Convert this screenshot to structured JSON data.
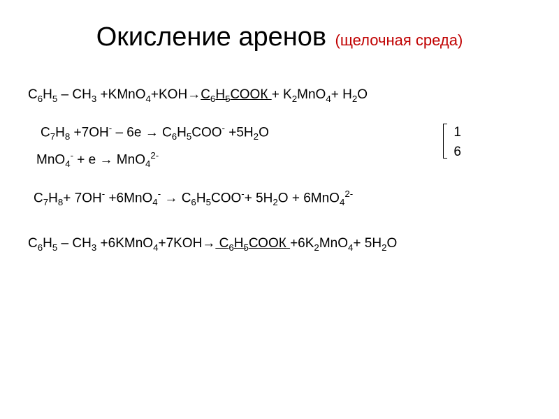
{
  "title": {
    "main": "Окисление аренов",
    "subtitle": "(щелочная среда)",
    "main_fontsize": 38,
    "subtitle_fontsize": 22,
    "subtitle_color": "#c00000"
  },
  "equations": {
    "eq1_parts": [
      "C",
      "6",
      "H",
      "5",
      " – CH",
      "3",
      " +KMnO",
      "4",
      "+KOH→",
      "С",
      "6",
      "Н",
      "5",
      "СООК ",
      "+ K",
      "2",
      "MnO",
      "4",
      "+ H",
      "2",
      "O"
    ],
    "eq2_parts": [
      "C",
      "7",
      "H",
      "8",
      " +7OH",
      "-",
      " – 6e → C",
      "6",
      "H",
      "5",
      "COO",
      "-",
      " +5H",
      "2",
      "O"
    ],
    "eq3_parts": [
      "MnO",
      "4",
      "-",
      "  + e → MnO",
      "4",
      "2-"
    ],
    "coef1": "1",
    "coef2": "6",
    "eq4_parts": [
      "C",
      "7",
      "H",
      "8",
      "+ 7OH",
      "-",
      " +6MnO",
      "4",
      "-",
      "   → C",
      "6",
      "H",
      "5",
      "COO",
      "-",
      "+ 5H",
      "2",
      "O + 6MnO",
      "4",
      "2-"
    ],
    "eq5_parts": [
      "C",
      "6",
      "H",
      "5",
      " – CH",
      "3",
      " +6KMnO",
      "4",
      "+7KOH→",
      " С",
      "6",
      "Н",
      "5",
      "СООК ",
      "+6K",
      "2",
      "MnO",
      "4",
      "+ 5H",
      "2",
      "O"
    ]
  },
  "styling": {
    "body_fontsize": 19,
    "background_color": "#ffffff",
    "text_color": "#000000",
    "red_color": "#c00000"
  }
}
